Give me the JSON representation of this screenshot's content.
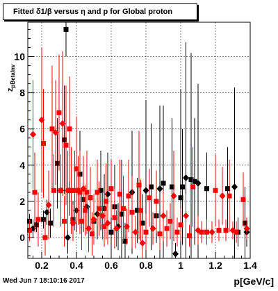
{
  "title": "Fitted δ1/β versus η and p for Global proton",
  "footer": "Wed Jun  7 18:10:16 2017",
  "colors": {
    "black_series": "#000000",
    "red_series": "#ff0000",
    "grid": "#000000",
    "background": "#ffffff"
  },
  "chart_data": {
    "type": "scatter",
    "xlabel": "p[GeV/c]",
    "ylabel": "z_{pBetaInv}",
    "xlim": [
      0.12,
      1.4
    ],
    "ylim": [
      -1.15,
      11.9
    ],
    "xticks": [
      0.2,
      0.4,
      0.6,
      0.8,
      1,
      1.2,
      1.4
    ],
    "xtick_labels": [
      "0.2",
      "0.4",
      "0.6",
      "0.8",
      "1",
      "1.2",
      "1.4"
    ],
    "yticks": [
      0,
      2,
      4,
      6,
      8,
      10
    ],
    "ytick_labels": [
      "0",
      "2",
      "4",
      "6",
      "8",
      "10"
    ],
    "grid": true,
    "series": [
      {
        "color": "#000000",
        "marker": "square-diamond",
        "points": [
          {
            "x": 0.13,
            "y": 0.9,
            "e": 0.4
          },
          {
            "x": 0.15,
            "y": 0.5,
            "e": 0.5
          },
          {
            "x": 0.17,
            "y": 0.7,
            "e": 0.4
          },
          {
            "x": 0.21,
            "y": 1.0,
            "e": 0.5
          },
          {
            "x": 0.23,
            "y": 1.4,
            "e": 0.7
          },
          {
            "x": 0.25,
            "y": 0.8,
            "e": 0.8
          },
          {
            "x": 0.29,
            "y": 4.1,
            "e": 2.5
          },
          {
            "x": 0.31,
            "y": 2.6,
            "e": 1.8
          },
          {
            "x": 0.33,
            "y": 5.4,
            "e": 3.0
          },
          {
            "x": 0.34,
            "y": 11.5,
            "e": 1.5
          },
          {
            "x": 0.35,
            "y": 0.0,
            "e": 0.9
          },
          {
            "x": 0.36,
            "y": 2.6,
            "e": 1.4
          },
          {
            "x": 0.38,
            "y": 1.0,
            "e": 1.0
          },
          {
            "x": 0.4,
            "y": 1.5,
            "e": 1.2
          },
          {
            "x": 0.42,
            "y": 3.5,
            "e": 2.4
          },
          {
            "x": 0.44,
            "y": 2.1,
            "e": 1.8
          },
          {
            "x": 0.46,
            "y": 1.7,
            "e": 1.0
          },
          {
            "x": 0.48,
            "y": 2.2,
            "e": 1.6
          },
          {
            "x": 0.5,
            "y": 0.9,
            "e": 1.2
          },
          {
            "x": 0.52,
            "y": 1.3,
            "e": 1.4
          },
          {
            "x": 0.54,
            "y": 2.6,
            "e": 2.2
          },
          {
            "x": 0.56,
            "y": 1.6,
            "e": 1.9
          },
          {
            "x": 0.58,
            "y": 2.4,
            "e": 2.3
          },
          {
            "x": 0.6,
            "y": 0.3,
            "e": 1.1
          },
          {
            "x": 0.62,
            "y": 1.7,
            "e": 2.3
          },
          {
            "x": 0.64,
            "y": 0.6,
            "e": 1.3
          },
          {
            "x": 0.66,
            "y": 1.3,
            "e": 3.0
          },
          {
            "x": 0.68,
            "y": -0.2,
            "e": 1.0
          },
          {
            "x": 0.72,
            "y": 2.5,
            "e": 3.4
          },
          {
            "x": 0.75,
            "y": 1.5,
            "e": 1.8
          },
          {
            "x": 0.78,
            "y": 0.8,
            "e": 1.6
          },
          {
            "x": 0.8,
            "y": 2.6,
            "e": 5.0
          },
          {
            "x": 0.83,
            "y": 2.8,
            "e": 3.5
          },
          {
            "x": 0.86,
            "y": 1.2,
            "e": 1.5
          },
          {
            "x": 0.88,
            "y": 2.7,
            "e": 4.6
          },
          {
            "x": 0.9,
            "y": 3.0,
            "e": 4.3
          },
          {
            "x": 0.95,
            "y": 2.8,
            "e": 3.8
          },
          {
            "x": 0.97,
            "y": -0.9,
            "e": 0.6
          },
          {
            "x": 1.0,
            "y": 2.2,
            "e": 6.0
          },
          {
            "x": 1.01,
            "y": 2.8,
            "e": 3.2
          },
          {
            "x": 1.03,
            "y": 3.3,
            "e": 7.5
          },
          {
            "x": 1.06,
            "y": 3.2,
            "e": 7.0
          },
          {
            "x": 1.08,
            "y": 3.1,
            "e": 3.5
          },
          {
            "x": 1.1,
            "y": 3.0,
            "e": 5.5
          },
          {
            "x": 1.15,
            "y": 2.7,
            "e": 2.0
          },
          {
            "x": 1.27,
            "y": 2.7,
            "e": 2.3
          },
          {
            "x": 1.31,
            "y": 2.8,
            "e": 5.5
          },
          {
            "x": 1.33,
            "y": 0.3,
            "e": 0.8
          },
          {
            "x": 1.37,
            "y": 0.8,
            "e": 2.0
          },
          {
            "x": 1.38,
            "y": 0.3,
            "e": 0.8
          }
        ]
      },
      {
        "color": "#ff0000",
        "marker": "square-diamond",
        "points": [
          {
            "x": 0.13,
            "y": 0.4,
            "e": 0.6
          },
          {
            "x": 0.15,
            "y": 5.7,
            "e": 3.0
          },
          {
            "x": 0.16,
            "y": 2.5,
            "e": 2.2
          },
          {
            "x": 0.18,
            "y": 1.0,
            "e": 1.5
          },
          {
            "x": 0.2,
            "y": 6.5,
            "e": 4.0
          },
          {
            "x": 0.21,
            "y": 5.2,
            "e": 3.0
          },
          {
            "x": 0.22,
            "y": 0.0,
            "e": 1.0
          },
          {
            "x": 0.24,
            "y": 1.8,
            "e": 1.9
          },
          {
            "x": 0.26,
            "y": 6.0,
            "e": 3.5
          },
          {
            "x": 0.27,
            "y": 2.6,
            "e": 2.0
          },
          {
            "x": 0.28,
            "y": 5.8,
            "e": 2.9
          },
          {
            "x": 0.3,
            "y": 6.9,
            "e": 3.2
          },
          {
            "x": 0.31,
            "y": 2.6,
            "e": 2.0
          },
          {
            "x": 0.32,
            "y": 6.3,
            "e": 4.0
          },
          {
            "x": 0.33,
            "y": 0.9,
            "e": 1.4
          },
          {
            "x": 0.34,
            "y": 5.1,
            "e": 3.3
          },
          {
            "x": 0.35,
            "y": 2.6,
            "e": 2.2
          },
          {
            "x": 0.36,
            "y": 6.0,
            "e": 2.9
          },
          {
            "x": 0.37,
            "y": 2.6,
            "e": 2.4
          },
          {
            "x": 0.38,
            "y": 0.8,
            "e": 1.0
          },
          {
            "x": 0.39,
            "y": 2.6,
            "e": 2.2
          },
          {
            "x": 0.4,
            "y": 3.8,
            "e": 2.9
          },
          {
            "x": 0.41,
            "y": 2.6,
            "e": 1.9
          },
          {
            "x": 0.42,
            "y": 2.5,
            "e": 2.3
          },
          {
            "x": 0.43,
            "y": 0.9,
            "e": 1.6
          },
          {
            "x": 0.44,
            "y": 2.7,
            "e": 1.8
          },
          {
            "x": 0.45,
            "y": 1.5,
            "e": 1.4
          },
          {
            "x": 0.46,
            "y": 2.5,
            "e": 2.3
          },
          {
            "x": 0.47,
            "y": 0.5,
            "e": 1.3
          },
          {
            "x": 0.48,
            "y": 2.2,
            "e": 1.7
          },
          {
            "x": 0.49,
            "y": 0.2,
            "e": 1.2
          },
          {
            "x": 0.5,
            "y": 1.0,
            "e": 1.4
          },
          {
            "x": 0.52,
            "y": 2.5,
            "e": 1.8
          },
          {
            "x": 0.53,
            "y": 1.6,
            "e": 1.5
          },
          {
            "x": 0.55,
            "y": 1.2,
            "e": 1.3
          },
          {
            "x": 0.56,
            "y": 0.6,
            "e": 1.1
          },
          {
            "x": 0.57,
            "y": 2.0,
            "e": 2.1
          },
          {
            "x": 0.58,
            "y": 0.8,
            "e": 1.2
          },
          {
            "x": 0.6,
            "y": 2.7,
            "e": 1.6
          },
          {
            "x": 0.62,
            "y": 1.1,
            "e": 1.6
          },
          {
            "x": 0.63,
            "y": 0.5,
            "e": 1.0
          },
          {
            "x": 0.65,
            "y": 2.4,
            "e": 1.9
          },
          {
            "x": 0.67,
            "y": 1.6,
            "e": 1.8
          },
          {
            "x": 0.69,
            "y": 0.6,
            "e": 1.0
          },
          {
            "x": 0.7,
            "y": 2.3,
            "e": 2.0
          },
          {
            "x": 0.72,
            "y": 1.4,
            "e": 2.0
          },
          {
            "x": 0.74,
            "y": 0.3,
            "e": 0.9
          },
          {
            "x": 0.76,
            "y": 2.9,
            "e": 3.0
          },
          {
            "x": 0.77,
            "y": 1.5,
            "e": 1.7
          },
          {
            "x": 0.78,
            "y": -0.3,
            "e": 1.0
          },
          {
            "x": 0.8,
            "y": 0.3,
            "e": 1.0
          },
          {
            "x": 0.82,
            "y": 2.2,
            "e": 1.6
          },
          {
            "x": 0.84,
            "y": 0.5,
            "e": 0.9
          },
          {
            "x": 0.86,
            "y": 2.0,
            "e": 1.7
          },
          {
            "x": 0.88,
            "y": 0.2,
            "e": 0.9
          },
          {
            "x": 0.9,
            "y": 1.2,
            "e": 1.4
          },
          {
            "x": 0.92,
            "y": 0.5,
            "e": 1.0
          },
          {
            "x": 0.94,
            "y": 0.9,
            "e": 1.0
          },
          {
            "x": 0.96,
            "y": 2.3,
            "e": 2.5
          },
          {
            "x": 0.98,
            "y": 0.3,
            "e": 0.8
          },
          {
            "x": 1.0,
            "y": 0.7,
            "e": 0.9
          },
          {
            "x": 1.03,
            "y": 1.2,
            "e": 1.2
          },
          {
            "x": 1.05,
            "y": 0.1,
            "e": 0.6
          },
          {
            "x": 1.07,
            "y": 2.8,
            "e": 2.2
          },
          {
            "x": 1.1,
            "y": 0.4,
            "e": 0.8
          },
          {
            "x": 1.12,
            "y": 0.3,
            "e": 0.6
          },
          {
            "x": 1.15,
            "y": 0.3,
            "e": 0.7
          },
          {
            "x": 1.18,
            "y": 0.3,
            "e": 0.6
          },
          {
            "x": 1.2,
            "y": 2.6,
            "e": 2.0
          },
          {
            "x": 1.22,
            "y": 0.4,
            "e": 0.6
          },
          {
            "x": 1.24,
            "y": 2.3,
            "e": 1.6
          },
          {
            "x": 1.26,
            "y": 0.4,
            "e": 0.6
          },
          {
            "x": 1.28,
            "y": 2.3,
            "e": 2.0
          },
          {
            "x": 1.3,
            "y": 0.4,
            "e": 0.5
          },
          {
            "x": 1.32,
            "y": 0.3,
            "e": 0.6
          },
          {
            "x": 1.36,
            "y": 2.1,
            "e": 1.5
          },
          {
            "x": 1.38,
            "y": 0.5,
            "e": 0.6
          }
        ]
      }
    ]
  }
}
